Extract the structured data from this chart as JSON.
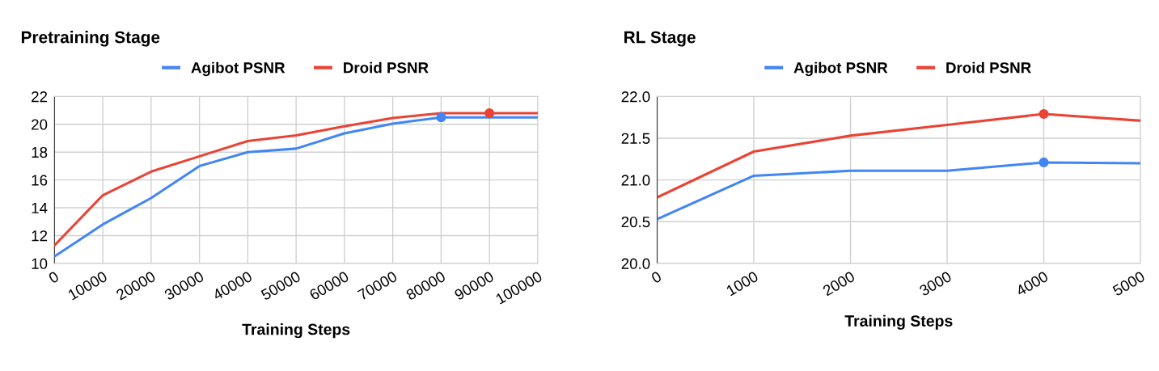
{
  "chart_data": [
    {
      "type": "line",
      "title": "Pretraining Stage",
      "xlabel": "Training Steps",
      "x": [
        0,
        10000,
        20000,
        30000,
        40000,
        50000,
        60000,
        70000,
        80000,
        90000,
        100000
      ],
      "series": [
        {
          "name": "Agibot PSNR",
          "color": "#4285f4",
          "values": [
            10.5,
            12.8,
            14.7,
            17.0,
            18.0,
            18.25,
            19.35,
            20.05,
            20.5,
            20.5,
            20.5
          ]
        },
        {
          "name": "Droid PSNR",
          "color": "#ea4335",
          "values": [
            11.3,
            14.9,
            16.6,
            17.7,
            18.8,
            19.2,
            19.85,
            20.45,
            20.8,
            20.8,
            20.8
          ]
        },
        {
          "type": "scatter",
          "color": "#4285f4",
          "x": [
            80000
          ],
          "values": [
            20.5
          ],
          "marker": "circle"
        },
        {
          "type": "scatter",
          "color": "#ea4335",
          "x": [
            90000
          ],
          "values": [
            20.8
          ],
          "marker": "circle"
        }
      ],
      "xlim": [
        0,
        100000
      ],
      "xticks": [
        0,
        10000,
        20000,
        30000,
        40000,
        50000,
        60000,
        70000,
        80000,
        90000,
        100000
      ],
      "ylim": [
        10,
        22
      ],
      "yticks": [
        10,
        12,
        14,
        16,
        18,
        20,
        22
      ],
      "grid": true,
      "legend": "top"
    },
    {
      "type": "line",
      "title": "RL Stage",
      "xlabel": "Training Steps",
      "x": [
        0,
        1000,
        2000,
        3000,
        4000,
        5000
      ],
      "series": [
        {
          "name": "Agibot PSNR",
          "color": "#4285f4",
          "values": [
            20.53,
            21.05,
            21.11,
            21.11,
            21.21,
            21.2
          ]
        },
        {
          "name": "Droid PSNR",
          "color": "#ea4335",
          "values": [
            20.79,
            21.34,
            21.53,
            21.66,
            21.79,
            21.71
          ]
        },
        {
          "type": "scatter",
          "color": "#4285f4",
          "x": [
            4000
          ],
          "values": [
            21.21
          ],
          "marker": "circle"
        },
        {
          "type": "scatter",
          "color": "#ea4335",
          "x": [
            4000
          ],
          "values": [
            21.79
          ],
          "marker": "circle"
        }
      ],
      "xlim": [
        0,
        5000
      ],
      "xticks": [
        0,
        1000,
        2000,
        3000,
        4000,
        5000
      ],
      "ylim": [
        20.0,
        22.0
      ],
      "yticks": [
        {
          "value": 20,
          "label": "20.0"
        },
        {
          "value": 20.5,
          "label": "20.5"
        },
        {
          "value": 21,
          "label": "21.0"
        },
        {
          "value": 21.5,
          "label": "21.5"
        },
        {
          "value": 22,
          "label": "22.0"
        }
      ],
      "grid": true,
      "legend": "top"
    }
  ]
}
